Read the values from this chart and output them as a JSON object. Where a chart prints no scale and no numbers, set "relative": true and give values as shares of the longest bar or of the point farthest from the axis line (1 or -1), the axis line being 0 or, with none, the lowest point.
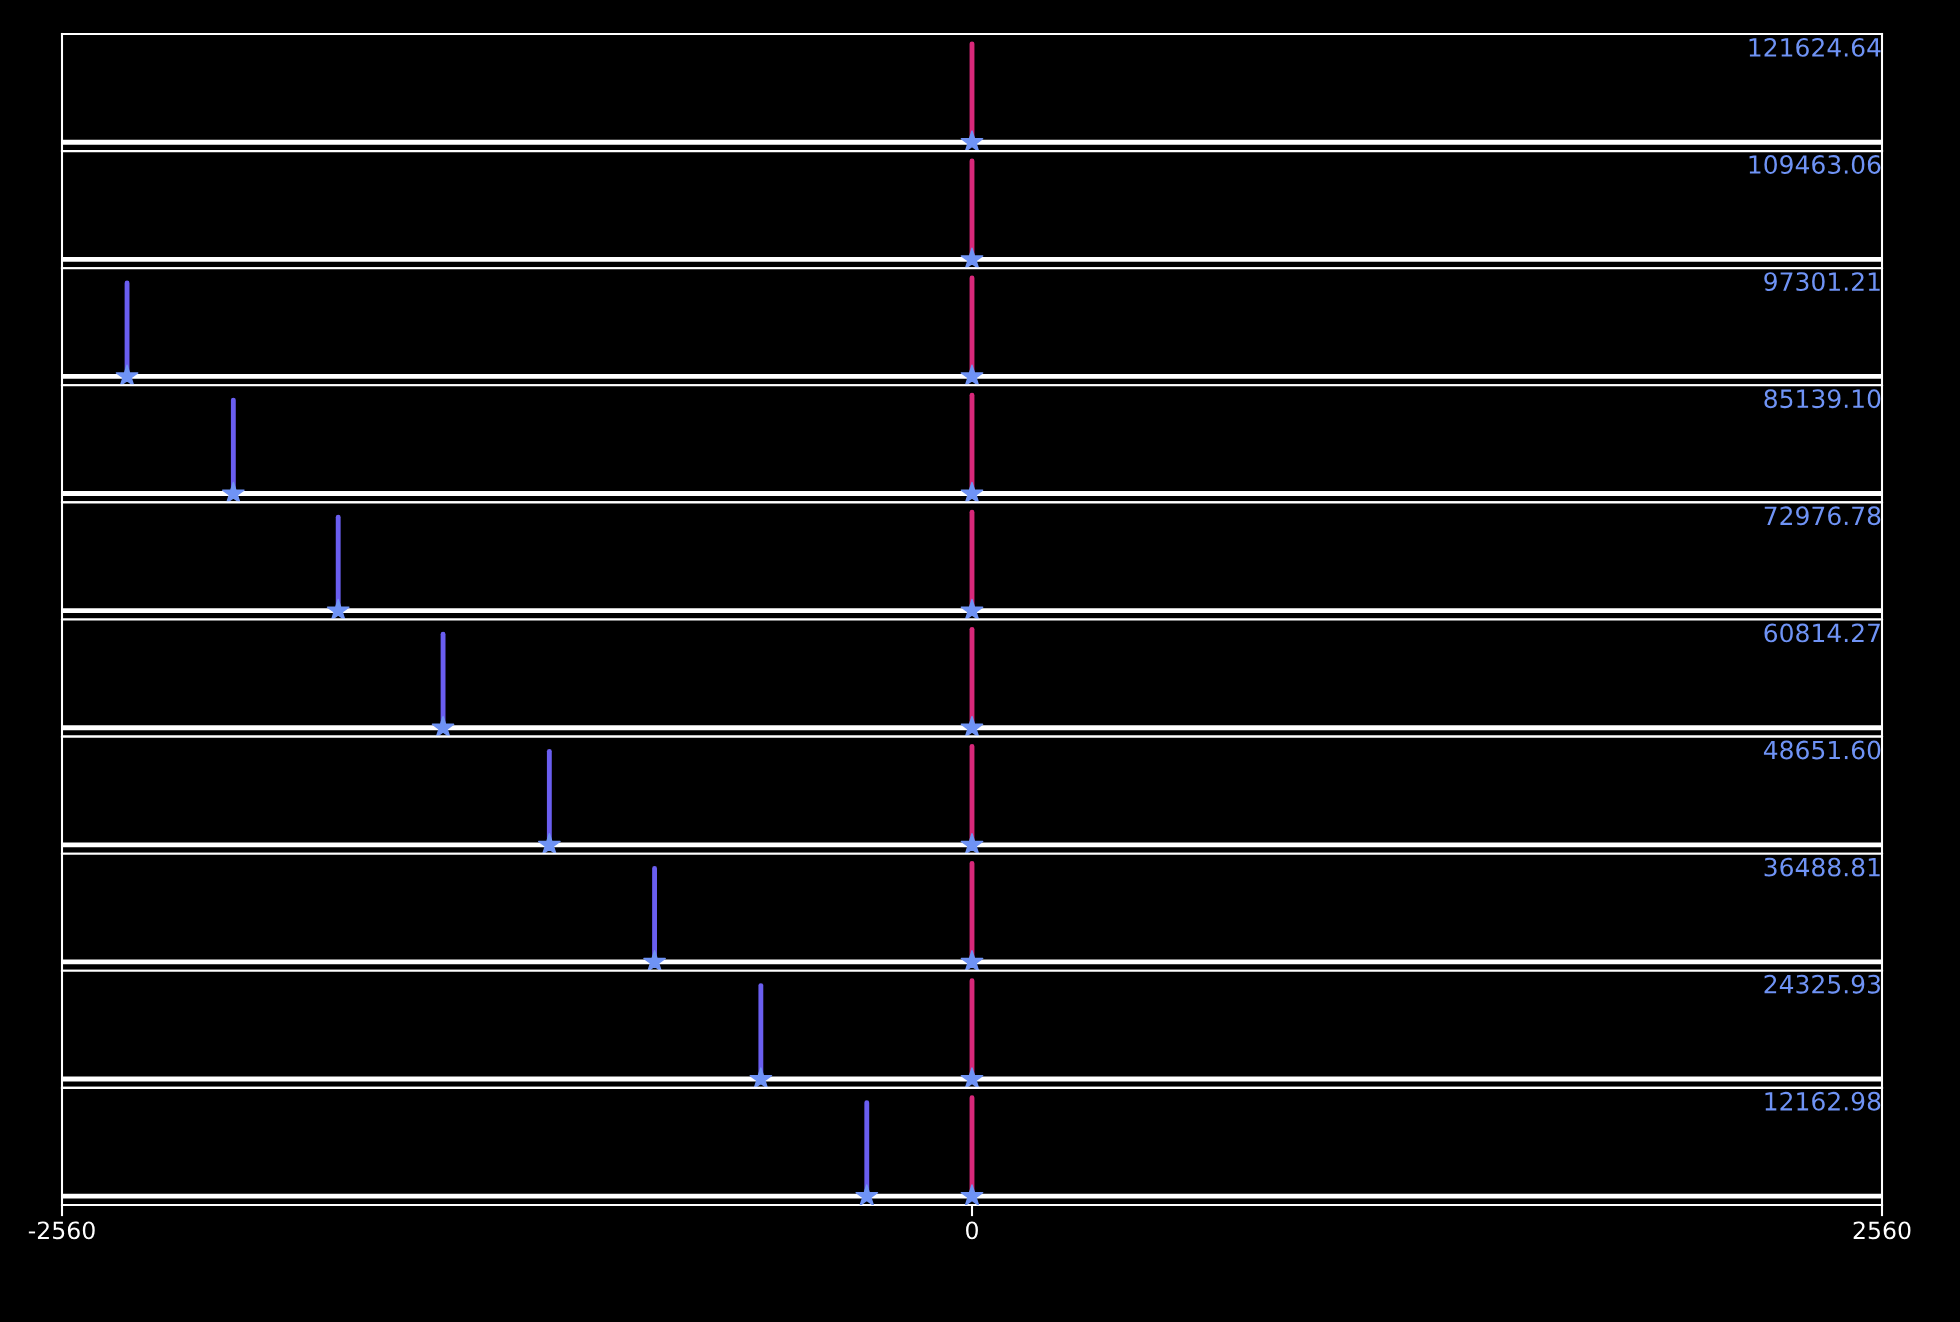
{
  "chart_data": [
    {
      "type": "line",
      "relative": true,
      "annotations": [
        "121624.64"
      ],
      "xlim": [
        -2560,
        2560
      ],
      "xticks": [
        -2560,
        0,
        2560
      ],
      "tick_labels": false,
      "grid": false,
      "legend": false,
      "series": [
        {
          "color": "#ffffff",
          "x": [
            -2560,
            2560
          ],
          "values": [
            0,
            0
          ]
        },
        {
          "color": "#d8287a",
          "x": [
            0,
            0
          ],
          "values": [
            0,
            1
          ]
        },
        {
          "type": "scatter",
          "marker": "star",
          "color": "#6f93f5",
          "x": [
            0
          ],
          "values": [
            0
          ]
        }
      ]
    },
    {
      "type": "line",
      "relative": true,
      "annotations": [
        "109463.06"
      ],
      "xlim": [
        -2560,
        2560
      ],
      "xticks": [
        -2560,
        0,
        2560
      ],
      "tick_labels": false,
      "grid": false,
      "legend": false,
      "series": [
        {
          "color": "#ffffff",
          "x": [
            -2560,
            2560
          ],
          "values": [
            0,
            0
          ]
        },
        {
          "color": "#d8287a",
          "x": [
            0,
            0
          ],
          "values": [
            0,
            1
          ]
        },
        {
          "type": "scatter",
          "marker": "star",
          "color": "#6f93f5",
          "x": [
            0
          ],
          "values": [
            0
          ]
        }
      ]
    },
    {
      "type": "line",
      "relative": true,
      "annotations": [
        "97301.21"
      ],
      "xlim": [
        -2560,
        2560
      ],
      "xticks": [
        -2560,
        0,
        2560
      ],
      "tick_labels": false,
      "grid": false,
      "legend": false,
      "series": [
        {
          "color": "#ffffff",
          "x": [
            -2560,
            2560
          ],
          "values": [
            0,
            0
          ]
        },
        {
          "color": "#6a5ef0",
          "x": [
            -2377,
            -2377
          ],
          "values": [
            0,
            0.95
          ]
        },
        {
          "color": "#d8287a",
          "x": [
            0,
            0
          ],
          "values": [
            0,
            1
          ]
        },
        {
          "type": "scatter",
          "marker": "star",
          "color": "#6f93f5",
          "x": [
            -2377,
            0
          ],
          "values": [
            0,
            0
          ]
        }
      ]
    },
    {
      "type": "line",
      "relative": true,
      "annotations": [
        "85139.10"
      ],
      "xlim": [
        -2560,
        2560
      ],
      "xticks": [
        -2560,
        0,
        2560
      ],
      "tick_labels": false,
      "grid": false,
      "legend": false,
      "series": [
        {
          "color": "#ffffff",
          "x": [
            -2560,
            2560
          ],
          "values": [
            0,
            0
          ]
        },
        {
          "color": "#6a5ef0",
          "x": [
            -2078,
            -2078
          ],
          "values": [
            0,
            0.95
          ]
        },
        {
          "color": "#d8287a",
          "x": [
            0,
            0
          ],
          "values": [
            0,
            1
          ]
        },
        {
          "type": "scatter",
          "marker": "star",
          "color": "#6f93f5",
          "x": [
            -2078,
            0
          ],
          "values": [
            0,
            0
          ]
        }
      ]
    },
    {
      "type": "line",
      "relative": true,
      "annotations": [
        "72976.78"
      ],
      "xlim": [
        -2560,
        2560
      ],
      "xticks": [
        -2560,
        0,
        2560
      ],
      "tick_labels": false,
      "grid": false,
      "legend": false,
      "series": [
        {
          "color": "#ffffff",
          "x": [
            -2560,
            2560
          ],
          "values": [
            0,
            0
          ]
        },
        {
          "color": "#6a5ef0",
          "x": [
            -1783,
            -1783
          ],
          "values": [
            0,
            0.95
          ]
        },
        {
          "color": "#d8287a",
          "x": [
            0,
            0
          ],
          "values": [
            0,
            1
          ]
        },
        {
          "type": "scatter",
          "marker": "star",
          "color": "#6f93f5",
          "x": [
            -1783,
            0
          ],
          "values": [
            0,
            0
          ]
        }
      ]
    },
    {
      "type": "line",
      "relative": true,
      "annotations": [
        "60814.27"
      ],
      "xlim": [
        -2560,
        2560
      ],
      "xticks": [
        -2560,
        0,
        2560
      ],
      "tick_labels": false,
      "grid": false,
      "legend": false,
      "series": [
        {
          "color": "#ffffff",
          "x": [
            -2560,
            2560
          ],
          "values": [
            0,
            0
          ]
        },
        {
          "color": "#6a5ef0",
          "x": [
            -1488,
            -1488
          ],
          "values": [
            0,
            0.95
          ]
        },
        {
          "color": "#d8287a",
          "x": [
            0,
            0
          ],
          "values": [
            0,
            1
          ]
        },
        {
          "type": "scatter",
          "marker": "star",
          "color": "#6f93f5",
          "x": [
            -1488,
            0
          ],
          "values": [
            0,
            0
          ]
        }
      ]
    },
    {
      "type": "line",
      "relative": true,
      "annotations": [
        "48651.60"
      ],
      "xlim": [
        -2560,
        2560
      ],
      "xticks": [
        -2560,
        0,
        2560
      ],
      "tick_labels": false,
      "grid": false,
      "legend": false,
      "series": [
        {
          "color": "#ffffff",
          "x": [
            -2560,
            2560
          ],
          "values": [
            0,
            0
          ]
        },
        {
          "color": "#6a5ef0",
          "x": [
            -1189,
            -1189
          ],
          "values": [
            0,
            0.95
          ]
        },
        {
          "color": "#d8287a",
          "x": [
            0,
            0
          ],
          "values": [
            0,
            1
          ]
        },
        {
          "type": "scatter",
          "marker": "star",
          "color": "#6f93f5",
          "x": [
            -1189,
            0
          ],
          "values": [
            0,
            0
          ]
        }
      ]
    },
    {
      "type": "line",
      "relative": true,
      "annotations": [
        "36488.81"
      ],
      "xlim": [
        -2560,
        2560
      ],
      "xticks": [
        -2560,
        0,
        2560
      ],
      "tick_labels": false,
      "grid": false,
      "legend": false,
      "series": [
        {
          "color": "#ffffff",
          "x": [
            -2560,
            2560
          ],
          "values": [
            0,
            0
          ]
        },
        {
          "color": "#6a5ef0",
          "x": [
            -893,
            -893
          ],
          "values": [
            0,
            0.95
          ]
        },
        {
          "color": "#d8287a",
          "x": [
            0,
            0
          ],
          "values": [
            0,
            1
          ]
        },
        {
          "type": "scatter",
          "marker": "star",
          "color": "#6f93f5",
          "x": [
            -893,
            0
          ],
          "values": [
            0,
            0
          ]
        }
      ]
    },
    {
      "type": "line",
      "relative": true,
      "annotations": [
        "24325.93"
      ],
      "xlim": [
        -2560,
        2560
      ],
      "xticks": [
        -2560,
        0,
        2560
      ],
      "tick_labels": false,
      "grid": false,
      "legend": false,
      "series": [
        {
          "color": "#ffffff",
          "x": [
            -2560,
            2560
          ],
          "values": [
            0,
            0
          ]
        },
        {
          "color": "#6a5ef0",
          "x": [
            -594,
            -594
          ],
          "values": [
            0,
            0.95
          ]
        },
        {
          "color": "#d8287a",
          "x": [
            0,
            0
          ],
          "values": [
            0,
            1
          ]
        },
        {
          "type": "scatter",
          "marker": "star",
          "color": "#6f93f5",
          "x": [
            -594,
            0
          ],
          "values": [
            0,
            0
          ]
        }
      ]
    },
    {
      "type": "line",
      "relative": true,
      "annotations": [
        "12162.98"
      ],
      "xlim": [
        -2560,
        2560
      ],
      "xticks": [
        -2560,
        0,
        2560
      ],
      "tick_labels": "x",
      "grid": false,
      "legend": false,
      "series": [
        {
          "color": "#ffffff",
          "x": [
            -2560,
            2560
          ],
          "values": [
            0,
            0
          ]
        },
        {
          "color": "#6a5ef0",
          "x": [
            -296,
            -296
          ],
          "values": [
            0,
            0.95
          ]
        },
        {
          "color": "#d8287a",
          "x": [
            0,
            0
          ],
          "values": [
            0,
            1
          ]
        },
        {
          "type": "scatter",
          "marker": "star",
          "color": "#6f93f5",
          "x": [
            -296,
            0
          ],
          "values": [
            0,
            0
          ]
        }
      ]
    }
  ]
}
